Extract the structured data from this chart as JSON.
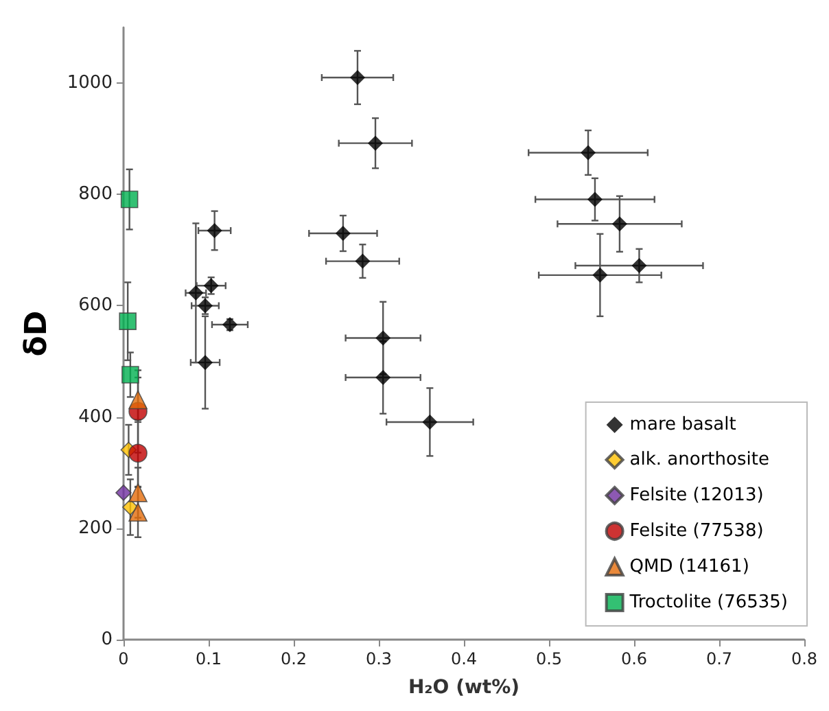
{
  "chart_data": {
    "type": "scatter",
    "xlabel": "H₂O (wt%)",
    "ylabel": "δD",
    "xlim": [
      0,
      0.8
    ],
    "xticks": [
      0,
      0.1,
      0.2,
      0.3,
      0.4,
      0.5,
      0.6,
      0.7,
      0.8
    ],
    "ylim": [
      0,
      1100
    ],
    "yticks": [
      0,
      200,
      400,
      600,
      800,
      1000
    ],
    "grid": false,
    "legend": "bottom right",
    "series": [
      {
        "name": "mare basalt",
        "color": "#000000",
        "marker": "diamond",
        "x": [
          0.275,
          0.296,
          0.258,
          0.281,
          0.305,
          0.305,
          0.36,
          0.546,
          0.554,
          0.583,
          0.606,
          0.56,
          0.107,
          0.103,
          0.085,
          0.096,
          0.125,
          0.096
        ],
        "values": [
          1010,
          892,
          730,
          680,
          542,
          471,
          391,
          875,
          791,
          747,
          672,
          655,
          735,
          636,
          623,
          600,
          566,
          498
        ],
        "errors": [
          48,
          45,
          32,
          30,
          65,
          65,
          61,
          40,
          38,
          50,
          30,
          74,
          35,
          15,
          125,
          15,
          10,
          83
        ],
        "xerrors": [
          0.042,
          0.043,
          0.04,
          0.043,
          0.044,
          0.044,
          0.051,
          0.07,
          0.07,
          0.073,
          0.075,
          0.072,
          0.019,
          0.017,
          0.012,
          0.016,
          0.021,
          0.017
        ]
      },
      {
        "name": "alk. anorthosite",
        "color": "#ffc000",
        "marker": "diamond",
        "x": [
          0.006,
          0.008
        ],
        "values": [
          341,
          238
        ],
        "errors": [
          45,
          50
        ]
      },
      {
        "name": "Felsite (12013)",
        "color": "#7030a0",
        "marker": "diamond",
        "x": [
          0
        ],
        "values": [
          264
        ]
      },
      {
        "name": "Felsite (77538)",
        "color": "#c00000",
        "marker": "circle",
        "x": [
          0.017,
          0.017
        ],
        "values": [
          410,
          335
        ],
        "errors": [
          74,
          60
        ]
      },
      {
        "name": "QMD (14161)",
        "color": "#e46c0a",
        "marker": "triangle",
        "x": [
          0.017,
          0.017,
          0.017
        ],
        "values": [
          431,
          264,
          229
        ],
        "errors": [
          40,
          45,
          45
        ]
      },
      {
        "name": "Troctolite (76535)",
        "color": "#00b050",
        "marker": "square",
        "x": [
          0.007,
          0.005,
          0.008
        ],
        "values": [
          791,
          572,
          476
        ],
        "errors": [
          54,
          70,
          40
        ]
      }
    ]
  }
}
